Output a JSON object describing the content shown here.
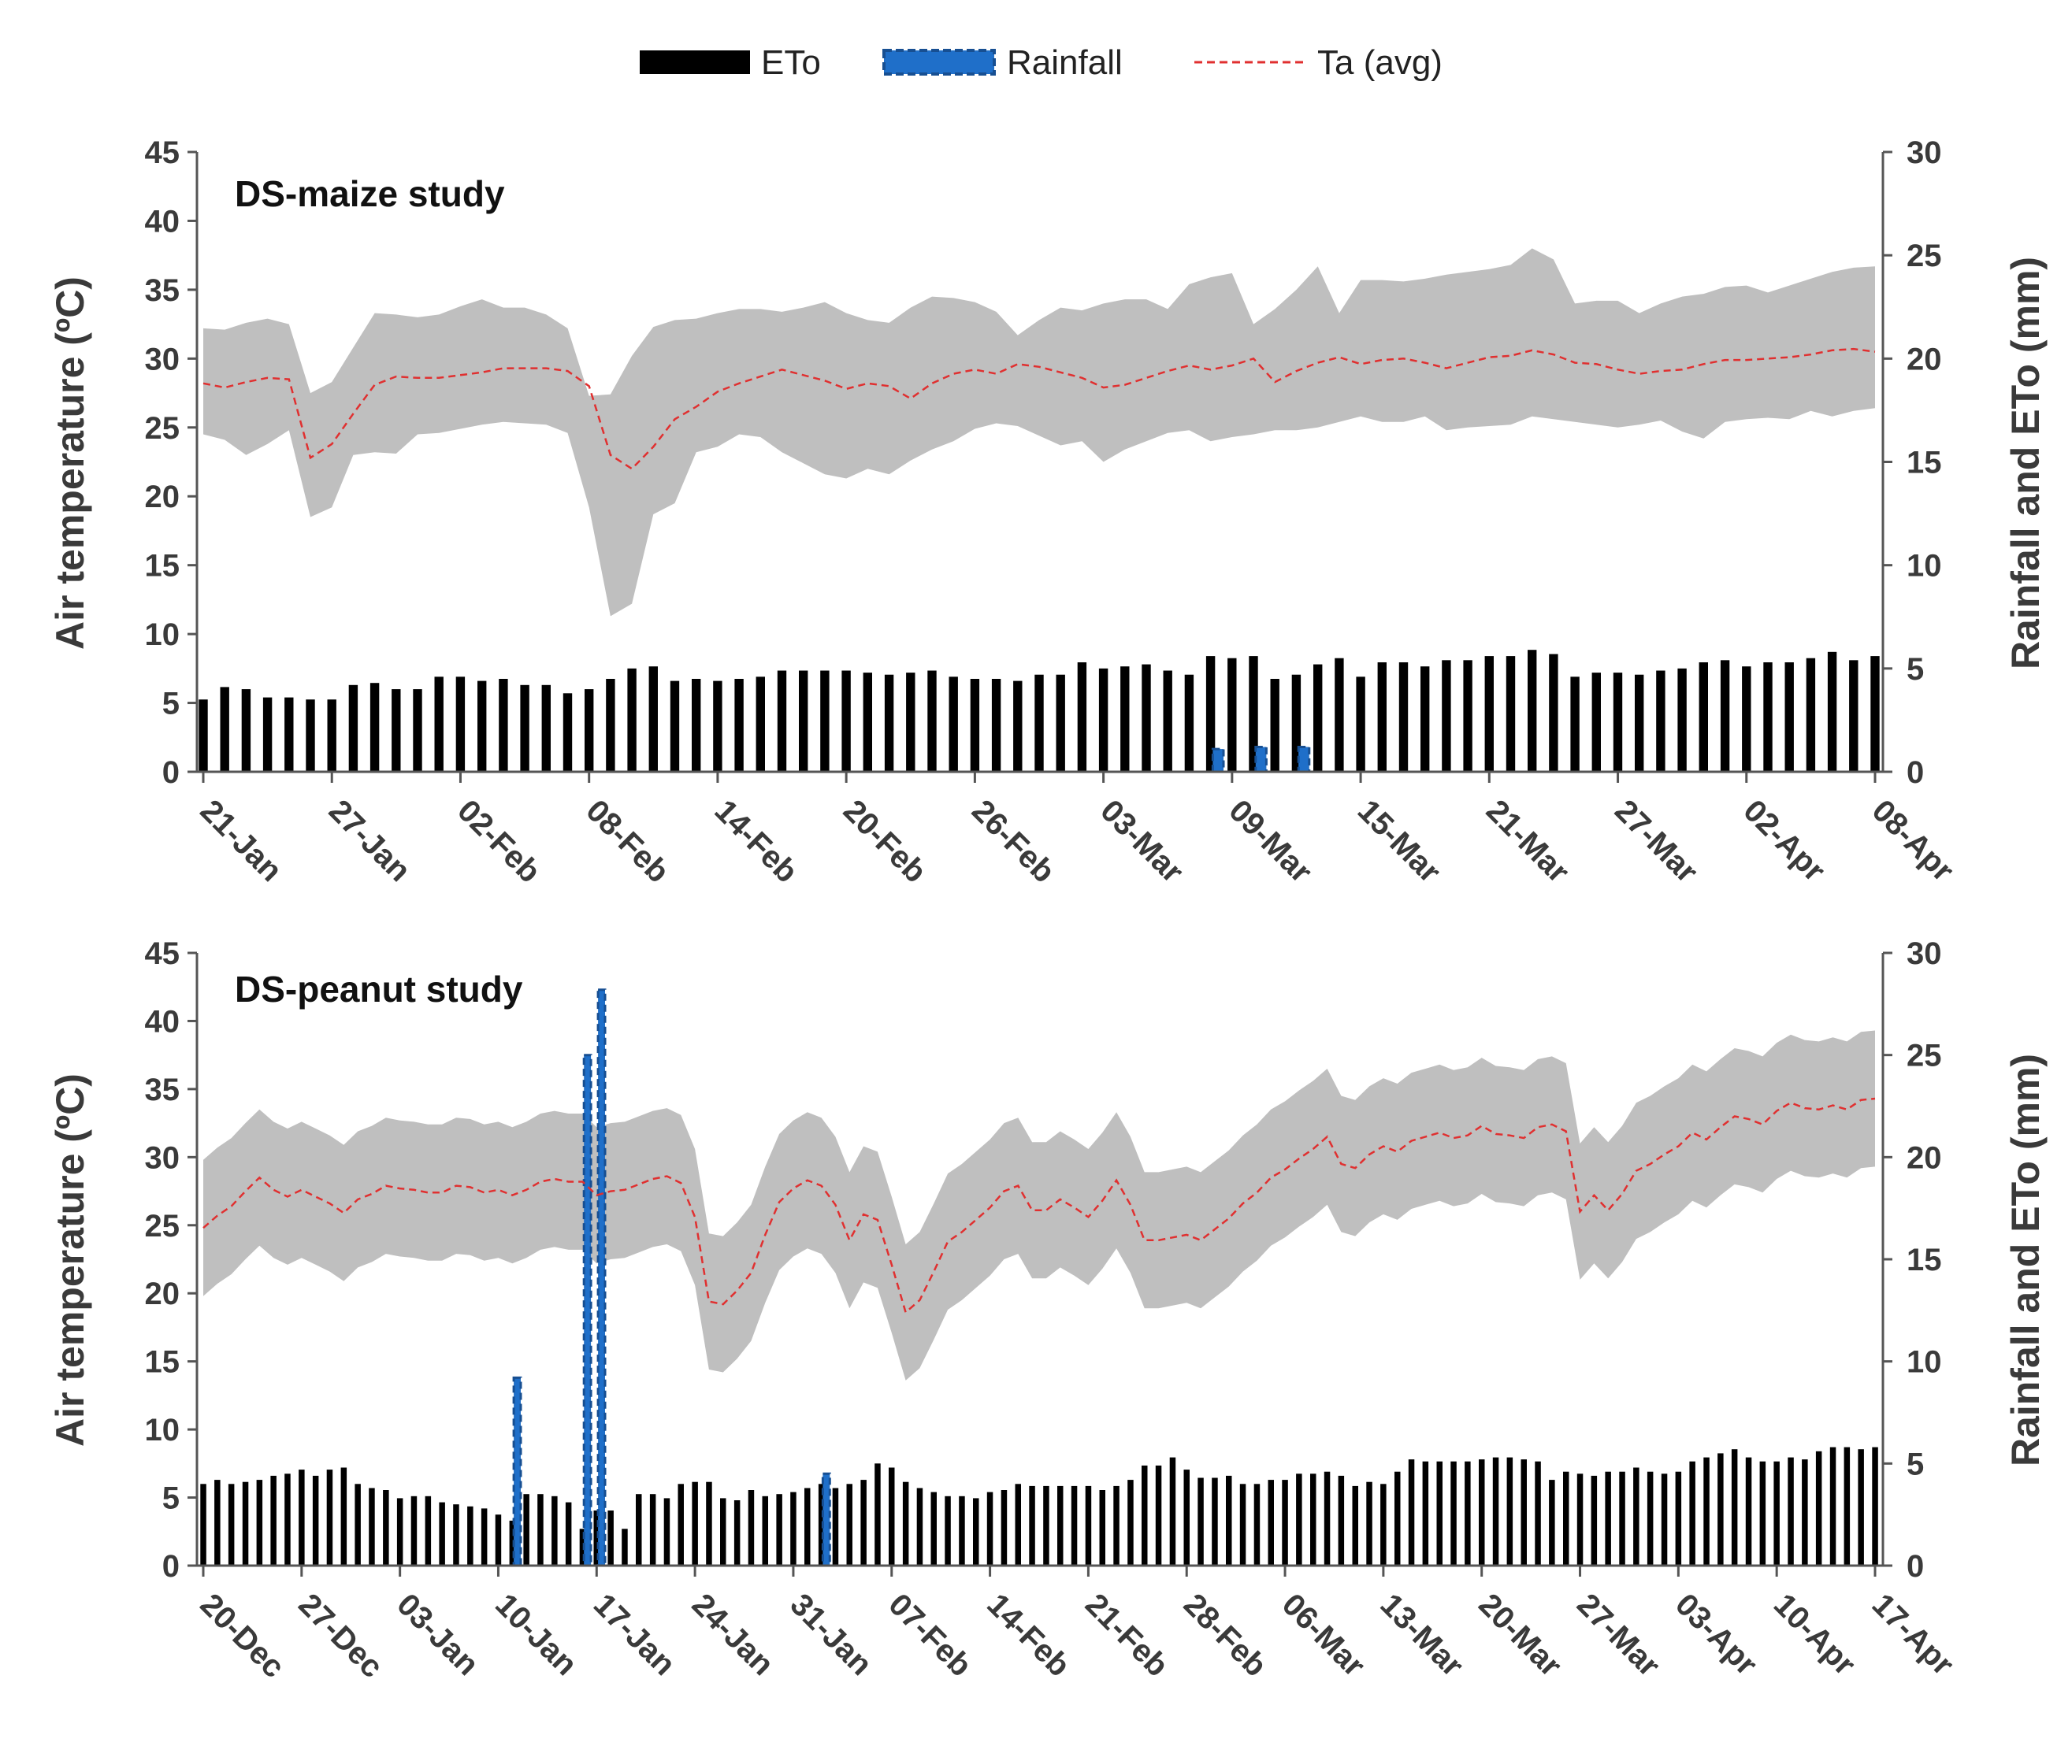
{
  "legend": {
    "eto_label": "ETo",
    "rain_label": "Rainfall",
    "ta_label": "Ta (avg)"
  },
  "colors": {
    "eto": "#000000",
    "rainfall": "#1f6fc9",
    "ta": "#e03030",
    "band": "#bfbfbf",
    "axis": "#555555"
  },
  "chart_data": [
    {
      "type": "bar+line+area",
      "title": "DS-maize study",
      "ylabel_left": "Air temperature (ºC)",
      "ylabel_right": "Rainfall and ETo (mm)",
      "ylim_left": [
        0,
        45
      ],
      "yticks_left": [
        "0",
        "5",
        "10",
        "15",
        "20",
        "25",
        "30",
        "35",
        "40",
        "45"
      ],
      "ylim_right": [
        0,
        30
      ],
      "yticks_right": [
        "0",
        "5",
        "10",
        "15",
        "20",
        "25",
        "30"
      ],
      "n_days": 79,
      "xtick_every": 6,
      "xticks": [
        "21-Jan",
        "27-Jan",
        "02-Feb",
        "08-Feb",
        "14-Feb",
        "20-Feb",
        "26-Feb",
        "03-Mar",
        "09-Mar",
        "15-Mar",
        "21-Mar",
        "27-Mar",
        "02-Apr",
        "08-Apr"
      ],
      "eto": [
        3.5,
        4.1,
        4.0,
        3.6,
        3.6,
        3.5,
        3.5,
        4.2,
        4.3,
        4.0,
        4.0,
        4.6,
        4.6,
        4.4,
        4.5,
        4.2,
        4.2,
        3.8,
        4.0,
        4.5,
        5.0,
        5.1,
        4.4,
        4.5,
        4.4,
        4.5,
        4.6,
        4.9,
        4.9,
        4.9,
        4.9,
        4.8,
        4.7,
        4.8,
        4.9,
        4.6,
        4.5,
        4.5,
        4.4,
        4.7,
        4.7,
        5.3,
        5.0,
        5.1,
        5.2,
        4.9,
        4.7,
        5.6,
        5.5,
        5.6,
        4.5,
        4.7,
        5.2,
        5.5,
        4.6,
        5.3,
        5.3,
        5.1,
        5.4,
        5.4,
        5.6,
        5.6,
        5.9,
        5.7,
        4.6,
        4.8,
        4.8,
        4.7,
        4.9,
        5.0,
        5.3,
        5.4,
        5.1,
        5.3,
        5.3,
        5.5,
        5.8,
        5.4,
        5.6
      ],
      "rainfall": [
        0,
        0,
        0,
        0,
        0,
        0,
        0,
        0,
        0,
        0,
        0,
        0,
        0,
        0,
        0,
        0,
        0,
        0,
        0,
        0,
        0,
        0,
        0,
        0,
        0,
        0,
        0,
        0,
        0,
        0,
        0,
        0,
        0,
        0,
        0,
        0,
        0,
        0,
        0,
        0,
        0,
        0,
        0,
        0,
        0,
        0,
        0,
        1.1,
        0,
        1.2,
        0,
        1.2,
        0,
        0,
        0,
        0,
        0,
        0,
        0,
        0,
        0,
        0,
        0,
        0,
        0,
        0,
        0,
        0,
        0,
        0,
        0,
        0,
        0,
        0,
        0,
        0,
        0,
        0,
        0
      ],
      "ta_avg": [
        28.2,
        27.9,
        28.3,
        28.6,
        28.5,
        22.8,
        23.8,
        26.0,
        28.1,
        28.7,
        28.6,
        28.6,
        28.8,
        29.0,
        29.3,
        29.3,
        29.3,
        29.1,
        28.0,
        23.0,
        22.0,
        23.6,
        25.6,
        26.5,
        27.6,
        28.2,
        28.7,
        29.2,
        28.8,
        28.4,
        27.8,
        28.2,
        28.0,
        27.1,
        28.2,
        28.9,
        29.2,
        28.9,
        29.6,
        29.4,
        29.0,
        28.6,
        27.9,
        28.1,
        28.6,
        29.1,
        29.5,
        29.2,
        29.5,
        30.0,
        28.3,
        29.1,
        29.7,
        30.1,
        29.6,
        29.9,
        30.0,
        29.7,
        29.3,
        29.7,
        30.1,
        30.2,
        30.6,
        30.3,
        29.7,
        29.6,
        29.2,
        28.9,
        29.1,
        29.2,
        29.6,
        29.9,
        29.9,
        30.0,
        30.1,
        30.3,
        30.6,
        30.7,
        30.5
      ],
      "ta_max": [
        32.2,
        32.1,
        32.6,
        32.9,
        32.5,
        27.5,
        28.3,
        30.8,
        33.3,
        33.2,
        33.0,
        33.2,
        33.8,
        34.3,
        33.7,
        33.7,
        33.2,
        32.2,
        27.3,
        27.4,
        30.2,
        32.3,
        32.8,
        32.9,
        33.3,
        33.6,
        33.6,
        33.4,
        33.7,
        34.1,
        33.3,
        32.8,
        32.6,
        33.7,
        34.5,
        34.4,
        34.1,
        33.4,
        31.7,
        32.8,
        33.7,
        33.5,
        34.0,
        34.3,
        34.3,
        33.6,
        35.4,
        35.9,
        36.2,
        32.5,
        33.6,
        35.0,
        36.7,
        33.3,
        35.7,
        35.7,
        35.6,
        35.8,
        36.1,
        36.3,
        36.5,
        36.8,
        38.0,
        37.2,
        34.0,
        34.2,
        34.2,
        33.3,
        34.0,
        34.5,
        34.7,
        35.2,
        35.3,
        34.8,
        35.3,
        35.8,
        36.3,
        36.6,
        36.7
      ],
      "ta_min": [
        24.5,
        24.1,
        23.0,
        23.8,
        24.8,
        18.5,
        19.2,
        23.0,
        23.2,
        23.1,
        24.5,
        24.6,
        24.9,
        25.2,
        25.4,
        25.3,
        25.2,
        24.6,
        19.2,
        11.3,
        12.2,
        18.7,
        19.5,
        23.2,
        23.6,
        24.5,
        24.3,
        23.2,
        22.4,
        21.6,
        21.3,
        22.0,
        21.6,
        22.6,
        23.4,
        24.0,
        24.9,
        25.3,
        25.1,
        24.4,
        23.7,
        24.0,
        22.5,
        23.4,
        24.0,
        24.6,
        24.8,
        24.0,
        24.3,
        24.5,
        24.8,
        24.8,
        25.0,
        25.4,
        25.8,
        25.4,
        25.4,
        25.8,
        24.8,
        25.0,
        25.1,
        25.2,
        25.8,
        25.6,
        25.4,
        25.2,
        25.0,
        25.2,
        25.5,
        24.7,
        24.2,
        25.4,
        25.6,
        25.7,
        25.6,
        26.2,
        25.8,
        26.2,
        26.4
      ]
    },
    {
      "type": "bar+line+area",
      "title": "DS-peanut study",
      "ylabel_left": "Air temperature (ºC)",
      "ylabel_right": "Rainfall and ETo (mm)",
      "ylim_left": [
        0,
        45
      ],
      "yticks_left": [
        "0",
        "5",
        "10",
        "15",
        "20",
        "25",
        "30",
        "35",
        "40",
        "45"
      ],
      "ylim_right": [
        0,
        30
      ],
      "yticks_right": [
        "0",
        "5",
        "10",
        "15",
        "20",
        "25",
        "30"
      ],
      "n_days": 120,
      "xtick_every": 7,
      "xticks": [
        "20-Dec",
        "27-Dec",
        "03-Jan",
        "10-Jan",
        "17-Jan",
        "24-Jan",
        "31-Jan",
        "07-Feb",
        "14-Feb",
        "21-Feb",
        "28-Feb",
        "06-Mar",
        "13-Mar",
        "20-Mar",
        "27-Mar",
        "03-Apr",
        "10-Apr",
        "17-Apr"
      ],
      "eto": [
        4.0,
        4.2,
        4.0,
        4.1,
        4.2,
        4.4,
        4.5,
        4.7,
        4.4,
        4.7,
        4.8,
        4.0,
        3.8,
        3.7,
        3.3,
        3.4,
        3.4,
        3.1,
        3.0,
        2.9,
        2.8,
        2.5,
        2.2,
        3.5,
        3.5,
        3.4,
        3.1,
        1.8,
        2.7,
        2.7,
        1.8,
        3.5,
        3.5,
        3.3,
        4.0,
        4.1,
        4.1,
        3.3,
        3.2,
        3.7,
        3.4,
        3.5,
        3.6,
        3.8,
        4.0,
        3.8,
        4.0,
        4.2,
        5.0,
        4.8,
        4.1,
        3.8,
        3.6,
        3.4,
        3.4,
        3.3,
        3.6,
        3.7,
        4.0,
        3.9,
        3.9,
        3.9,
        3.9,
        3.9,
        3.7,
        3.9,
        4.2,
        4.9,
        4.9,
        5.3,
        4.7,
        4.3,
        4.3,
        4.4,
        4.0,
        4.0,
        4.2,
        4.2,
        4.5,
        4.5,
        4.6,
        4.4,
        3.9,
        4.1,
        4.0,
        4.6,
        5.2,
        5.1,
        5.1,
        5.1,
        5.1,
        5.2,
        5.3,
        5.3,
        5.2,
        5.1,
        4.2,
        4.6,
        4.5,
        4.4,
        4.6,
        4.6,
        4.8,
        4.6,
        4.5,
        4.6,
        5.1,
        5.3,
        5.5,
        5.7,
        5.3,
        5.1,
        5.1,
        5.3,
        5.2,
        5.6,
        5.8,
        5.8,
        5.7,
        5.8
      ],
      "rainfall": [
        0,
        0,
        0,
        0,
        0,
        0,
        0,
        0,
        0,
        0,
        0,
        0,
        0,
        0,
        0,
        0,
        0,
        0,
        0,
        0,
        0,
        0,
        9.2,
        0,
        0,
        0,
        0,
        25.0,
        28.2,
        0,
        0,
        0,
        0,
        0,
        0,
        0,
        0,
        0,
        0,
        0,
        0,
        0,
        0,
        0,
        4.5,
        0,
        0,
        0,
        0,
        0,
        0,
        0,
        0,
        0,
        0,
        0,
        0,
        0,
        0,
        0,
        0,
        0,
        0,
        0,
        0,
        0,
        0,
        0,
        0,
        0,
        0,
        0,
        0,
        0,
        0,
        0,
        0,
        0,
        0,
        0,
        0,
        0,
        0,
        0,
        0,
        0,
        0,
        0,
        0,
        0,
        0,
        0,
        0,
        0,
        0,
        0,
        0,
        0,
        0,
        0,
        0,
        0,
        0,
        0,
        0,
        0,
        0,
        0,
        0,
        0,
        0,
        0,
        0,
        0,
        0,
        0,
        0,
        0,
        0,
        0
      ],
      "ta_avg": [
        24.8,
        25.7,
        26.4,
        27.5,
        28.5,
        27.6,
        27.1,
        27.6,
        27.1,
        26.6,
        25.9,
        26.9,
        27.3,
        27.9,
        27.7,
        27.6,
        27.4,
        27.4,
        27.9,
        27.8,
        27.4,
        27.6,
        27.2,
        27.6,
        28.2,
        28.4,
        28.2,
        28.2,
        27.2,
        27.5,
        27.6,
        28.0,
        28.4,
        28.6,
        28.1,
        25.6,
        19.4,
        19.2,
        20.2,
        21.5,
        24.3,
        26.7,
        27.7,
        28.3,
        27.9,
        26.5,
        23.9,
        25.8,
        25.4,
        22.1,
        18.6,
        19.5,
        21.6,
        23.8,
        24.5,
        25.4,
        26.3,
        27.5,
        27.9,
        26.1,
        26.1,
        26.9,
        26.3,
        25.6,
        26.8,
        28.3,
        26.5,
        23.9,
        23.9,
        24.1,
        24.3,
        23.9,
        24.7,
        25.5,
        26.6,
        27.4,
        28.5,
        29.1,
        29.9,
        30.6,
        31.5,
        29.5,
        29.2,
        30.2,
        30.8,
        30.4,
        31.2,
        31.5,
        31.8,
        31.4,
        31.6,
        32.3,
        31.7,
        31.6,
        31.4,
        32.2,
        32.4,
        31.9,
        26.0,
        27.2,
        26.1,
        27.3,
        29.0,
        29.5,
        30.2,
        30.8,
        31.8,
        31.3,
        32.2,
        33.0,
        32.8,
        32.4,
        33.4,
        34.0,
        33.6,
        33.5,
        33.8,
        33.5,
        34.2,
        34.3
      ]
    }
  ]
}
